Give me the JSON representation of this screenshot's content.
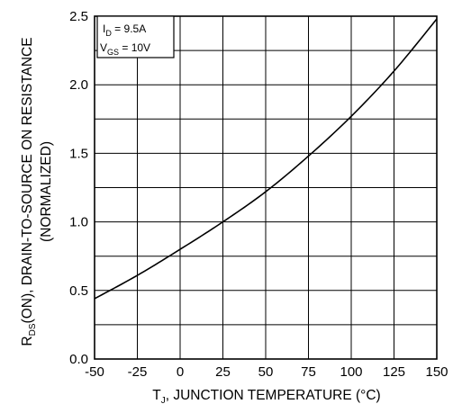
{
  "chart_data": {
    "type": "line",
    "xlabel": {
      "main": "T",
      "sub": "J",
      "rest": ", JUNCTION TEMPERATURE (°C)"
    },
    "ylabel": {
      "main": "R",
      "sub": "DS",
      "rest": "(ON), DRAIN-TO-SOURCE ON RESISTANCE",
      "line2": "(NORMALIZED)"
    },
    "xlim": [
      -50,
      150
    ],
    "ylim": [
      0,
      2.5
    ],
    "x_ticks": [
      -50,
      -25,
      0,
      25,
      50,
      75,
      100,
      125,
      150
    ],
    "y_ticks": [
      0.0,
      0.5,
      1.0,
      1.5,
      2.0,
      2.5
    ],
    "x_tick_labels": [
      "-50",
      "-25",
      "0",
      "25",
      "50",
      "75",
      "100",
      "125",
      "150"
    ],
    "y_tick_labels": [
      "0.0",
      "0.5",
      "1.0",
      "1.5",
      "2.0",
      "2.5"
    ],
    "grid": true,
    "legend_position": "top-left",
    "conditions": [
      {
        "main": "I",
        "sub": "D",
        "rest": " = 9.5A"
      },
      {
        "main": "V",
        "sub": "GS",
        "rest": " = 10V"
      }
    ],
    "series": [
      {
        "x": [
          -50,
          -25,
          0,
          25,
          50,
          75,
          100,
          125,
          150
        ],
        "values": [
          0.44,
          0.61,
          0.8,
          1.0,
          1.22,
          1.48,
          1.77,
          2.1,
          2.48
        ]
      }
    ]
  }
}
